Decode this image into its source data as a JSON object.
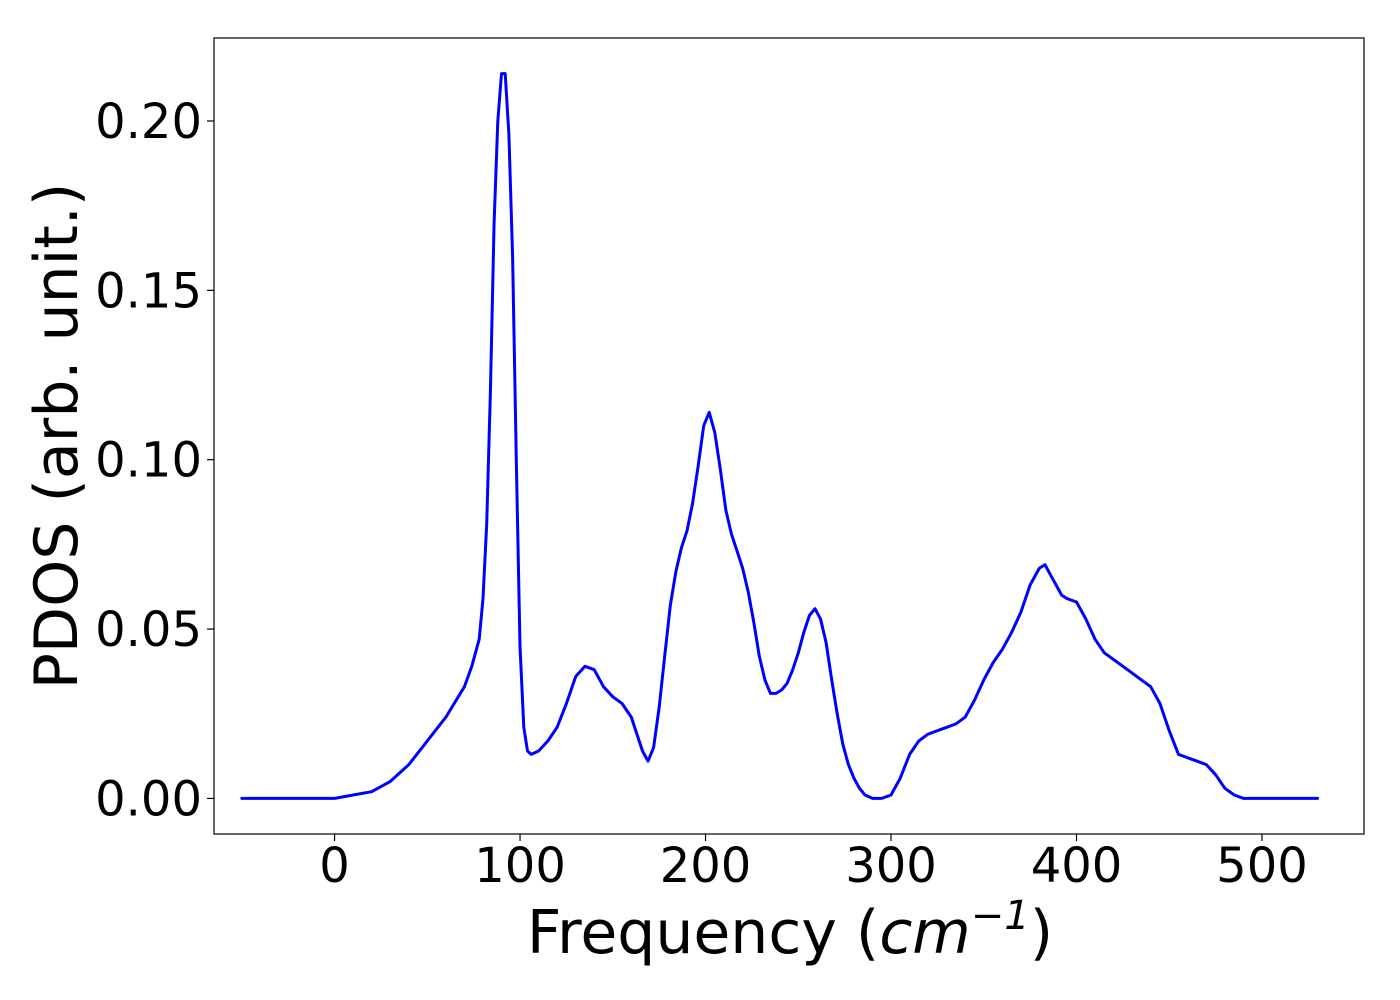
{
  "chart_data": {
    "type": "line",
    "xlabel": "Frequency (",
    "xlabel_math": "cm",
    "xlabel_sup": "−1",
    "xlabel_close": ")",
    "ylabel": "PDOS (arb. unit.)",
    "xlim": [
      -65,
      555
    ],
    "ylim": [
      -0.0105,
      0.2245
    ],
    "x_ticks": [
      0,
      100,
      200,
      300,
      400,
      500
    ],
    "x_tick_labels": [
      "0",
      "100",
      "200",
      "300",
      "400",
      "500"
    ],
    "y_ticks": [
      0.0,
      0.05,
      0.1,
      0.15,
      0.2
    ],
    "y_tick_labels": [
      "0.00",
      "0.05",
      "0.10",
      "0.15",
      "0.20"
    ],
    "grid": false,
    "line_color": "#0000ff",
    "series": [
      {
        "x": [
          -50,
          0,
          10,
          20,
          30,
          40,
          50,
          60,
          70,
          74,
          78,
          80,
          82,
          84,
          86,
          88,
          90,
          92,
          94,
          96,
          98,
          100,
          102,
          104,
          106,
          110,
          115,
          120,
          125,
          130,
          135,
          140,
          145,
          150,
          155,
          160,
          163,
          166,
          169,
          172,
          175,
          178,
          181,
          184,
          187,
          190,
          193,
          196,
          199,
          202,
          205,
          208,
          211,
          214,
          217,
          220,
          223,
          226,
          229,
          232,
          235,
          238,
          241,
          244,
          247,
          250,
          253,
          256,
          259,
          262,
          265,
          268,
          271,
          274,
          277,
          280,
          283,
          286,
          290,
          295,
          300,
          305,
          310,
          315,
          320,
          325,
          330,
          335,
          340,
          345,
          350,
          355,
          360,
          365,
          370,
          375,
          380,
          383,
          386,
          389,
          392,
          395,
          400,
          405,
          410,
          415,
          420,
          425,
          430,
          435,
          440,
          445,
          450,
          455,
          460,
          465,
          470,
          475,
          480,
          485,
          490,
          500,
          530
        ],
        "y": [
          0.0,
          0.0,
          0.001,
          0.002,
          0.005,
          0.01,
          0.017,
          0.024,
          0.033,
          0.039,
          0.047,
          0.059,
          0.081,
          0.12,
          0.17,
          0.2,
          0.214,
          0.214,
          0.196,
          0.16,
          0.1,
          0.045,
          0.021,
          0.014,
          0.013,
          0.014,
          0.017,
          0.021,
          0.028,
          0.036,
          0.039,
          0.038,
          0.033,
          0.03,
          0.028,
          0.024,
          0.019,
          0.014,
          0.011,
          0.015,
          0.027,
          0.042,
          0.057,
          0.067,
          0.074,
          0.079,
          0.087,
          0.098,
          0.11,
          0.114,
          0.108,
          0.097,
          0.085,
          0.078,
          0.073,
          0.068,
          0.061,
          0.052,
          0.042,
          0.035,
          0.031,
          0.031,
          0.032,
          0.034,
          0.038,
          0.043,
          0.049,
          0.054,
          0.056,
          0.053,
          0.046,
          0.035,
          0.025,
          0.016,
          0.01,
          0.006,
          0.003,
          0.001,
          0.0,
          0.0,
          0.001,
          0.006,
          0.013,
          0.017,
          0.019,
          0.02,
          0.021,
          0.022,
          0.024,
          0.029,
          0.035,
          0.04,
          0.044,
          0.049,
          0.055,
          0.063,
          0.068,
          0.069,
          0.066,
          0.063,
          0.06,
          0.059,
          0.058,
          0.053,
          0.047,
          0.043,
          0.041,
          0.039,
          0.037,
          0.035,
          0.033,
          0.028,
          0.02,
          0.013,
          0.012,
          0.011,
          0.01,
          0.007,
          0.003,
          0.001,
          0.0,
          0.0,
          0.0
        ]
      }
    ]
  }
}
